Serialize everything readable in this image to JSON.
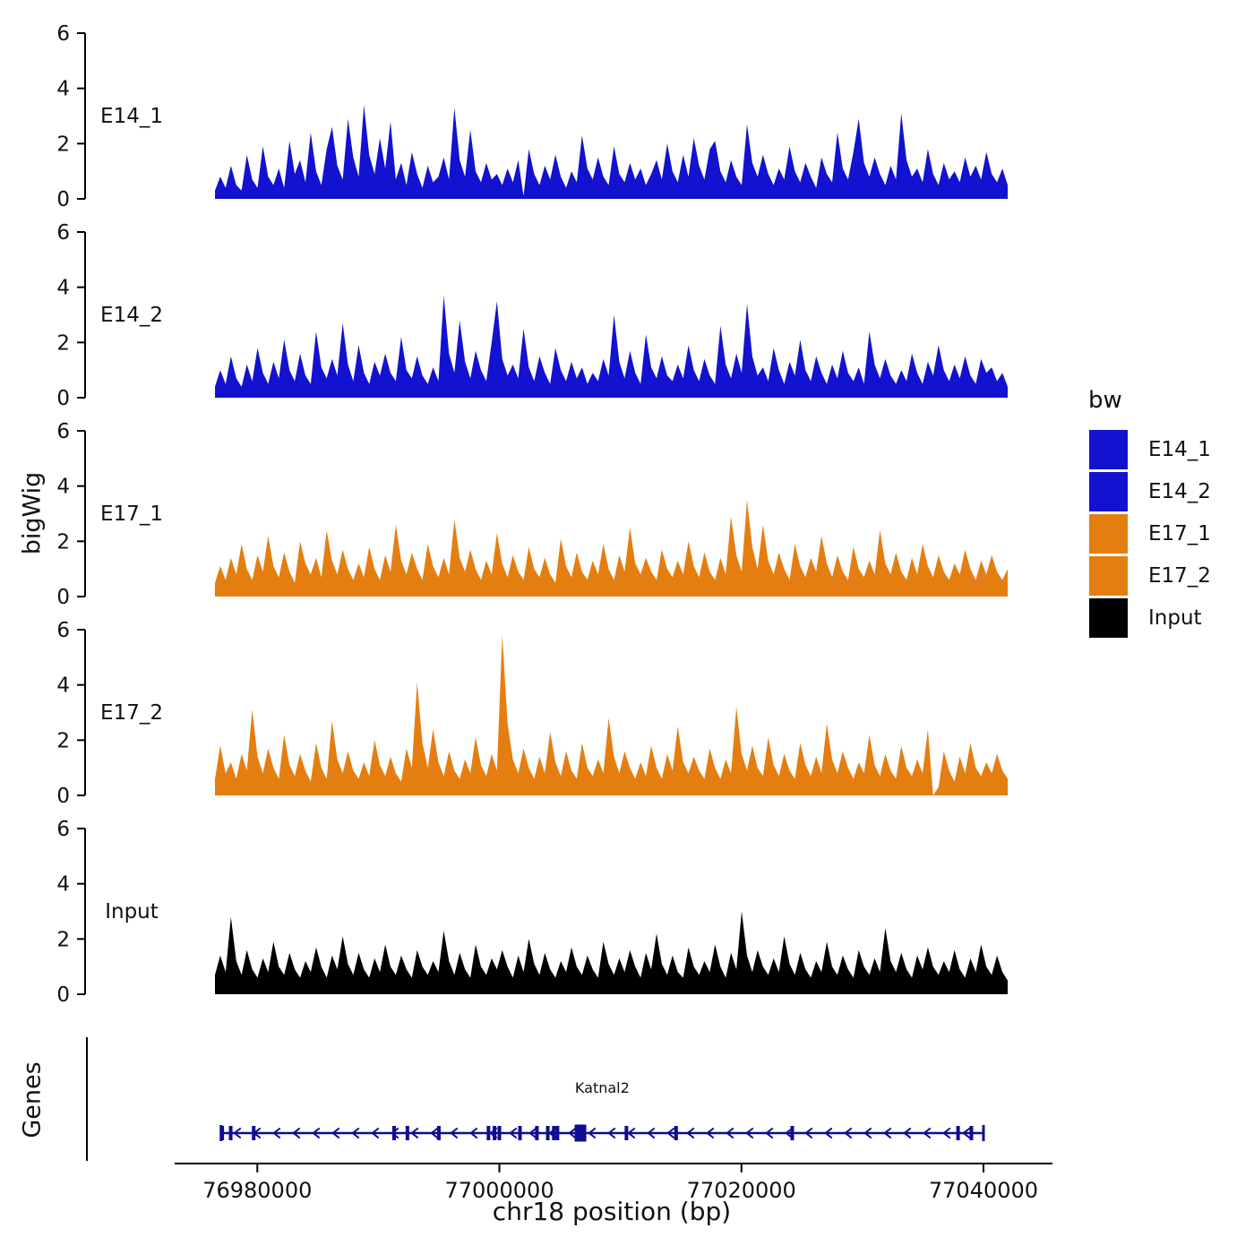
{
  "figure": {
    "y_axis_title": "bigWig",
    "genes_panel_title": "Genes",
    "x_axis_title": "chr18 position (bp)"
  },
  "legend": {
    "title": "bw",
    "items": [
      {
        "label": "E14_1",
        "color": "#1212d0"
      },
      {
        "label": "E14_2",
        "color": "#1212d0"
      },
      {
        "label": "E17_1",
        "color": "#e57e10"
      },
      {
        "label": "E17_2",
        "color": "#e57e10"
      },
      {
        "label": "Input",
        "color": "#000000"
      }
    ]
  },
  "chart_data": {
    "type": "area",
    "title": "",
    "xlabel": "chr18 position (bp)",
    "ylabel": "bigWig",
    "x_domain_bp": [
      76976500,
      77042000
    ],
    "x_ticks_bp": [
      76980000,
      77000000,
      77020000,
      77040000
    ],
    "x_tick_labels": [
      "76980000",
      "77000000",
      "77020000",
      "77040000"
    ],
    "ylim": [
      0,
      6
    ],
    "y_ticks": [
      0,
      2,
      4,
      6
    ],
    "grid": false,
    "legend_position": "right",
    "tracks": [
      {
        "name": "E14_1",
        "color": "#1212d0",
        "values": [
          0.3,
          0.8,
          0.4,
          1.2,
          0.5,
          0.3,
          1.6,
          0.7,
          0.4,
          1.9,
          0.8,
          0.5,
          1.1,
          0.4,
          2.1,
          0.9,
          1.4,
          0.6,
          2.4,
          1.0,
          0.5,
          1.8,
          2.6,
          1.2,
          0.7,
          2.9,
          1.5,
          0.8,
          3.4,
          1.6,
          0.9,
          2.2,
          1.1,
          2.8,
          0.7,
          1.3,
          0.5,
          1.7,
          0.9,
          0.4,
          1.2,
          0.6,
          0.8,
          1.5,
          0.7,
          3.3,
          1.4,
          0.8,
          2.5,
          1.0,
          0.6,
          1.3,
          0.7,
          0.9,
          0.5,
          1.1,
          0.6,
          1.4,
          0.1,
          1.8,
          0.9,
          0.5,
          1.2,
          0.7,
          1.6,
          0.8,
          0.4,
          1.0,
          0.6,
          2.3,
          1.1,
          0.7,
          1.5,
          0.8,
          0.5,
          1.9,
          0.9,
          0.6,
          1.3,
          0.7,
          1.1,
          0.5,
          0.9,
          1.4,
          0.7,
          2.0,
          1.0,
          0.6,
          1.6,
          0.8,
          2.2,
          1.2,
          0.7,
          1.8,
          2.1,
          1.0,
          0.6,
          1.4,
          0.8,
          0.5,
          2.7,
          1.3,
          0.8,
          1.6,
          0.9,
          0.5,
          1.1,
          0.7,
          1.9,
          1.0,
          0.6,
          1.3,
          0.8,
          0.4,
          1.5,
          0.9,
          0.6,
          2.4,
          1.1,
          0.7,
          1.7,
          2.9,
          1.3,
          0.8,
          1.5,
          0.9,
          0.5,
          1.2,
          0.7,
          3.1,
          1.4,
          0.8,
          1.1,
          0.6,
          1.8,
          0.9,
          0.5,
          1.3,
          0.7,
          1.0,
          0.6,
          1.5,
          0.8,
          1.2,
          0.7,
          1.7,
          0.9,
          0.6,
          1.1,
          0.5
        ]
      },
      {
        "name": "E14_2",
        "color": "#1212d0",
        "values": [
          0.4,
          1.0,
          0.5,
          1.5,
          0.7,
          0.4,
          1.2,
          0.6,
          1.8,
          0.9,
          0.5,
          1.3,
          0.7,
          2.1,
          1.0,
          0.6,
          1.6,
          0.8,
          0.5,
          2.4,
          1.1,
          0.7,
          1.4,
          0.8,
          2.7,
          1.2,
          0.6,
          1.9,
          0.9,
          0.5,
          1.3,
          0.8,
          1.6,
          0.9,
          0.6,
          2.2,
          1.0,
          0.7,
          1.5,
          0.8,
          0.5,
          1.1,
          0.6,
          3.7,
          1.6,
          0.9,
          2.8,
          1.3,
          0.7,
          1.7,
          1.0,
          0.6,
          2.0,
          3.5,
          1.4,
          0.8,
          1.2,
          0.7,
          2.5,
          1.1,
          0.6,
          1.5,
          0.9,
          0.5,
          1.8,
          1.0,
          0.6,
          1.3,
          0.7,
          1.1,
          0.5,
          0.9,
          0.6,
          1.4,
          0.8,
          3.0,
          1.3,
          0.7,
          1.7,
          0.9,
          0.5,
          2.3,
          1.1,
          0.7,
          1.5,
          0.8,
          0.6,
          1.2,
          0.7,
          1.9,
          1.0,
          0.6,
          1.4,
          0.8,
          0.5,
          2.6,
          1.2,
          0.7,
          1.6,
          0.9,
          3.4,
          1.5,
          0.8,
          1.1,
          0.6,
          1.8,
          1.0,
          0.5,
          1.3,
          0.8,
          2.1,
          1.0,
          0.6,
          1.5,
          0.9,
          0.5,
          1.2,
          0.7,
          1.7,
          0.9,
          0.6,
          1.1,
          0.5,
          2.4,
          1.2,
          0.7,
          1.4,
          0.8,
          0.5,
          1.0,
          0.6,
          1.6,
          0.9,
          0.5,
          1.3,
          0.8,
          1.9,
          1.0,
          0.6,
          1.2,
          0.7,
          1.5,
          0.8,
          0.5,
          1.4,
          0.9,
          1.1,
          0.6,
          0.9,
          0.4
        ]
      },
      {
        "name": "E17_1",
        "color": "#e57e10",
        "values": [
          0.5,
          1.1,
          0.6,
          1.4,
          0.8,
          1.9,
          1.0,
          0.6,
          1.5,
          0.9,
          2.2,
          1.1,
          0.7,
          1.6,
          0.9,
          0.5,
          2.0,
          1.2,
          0.8,
          1.4,
          0.7,
          2.4,
          1.3,
          0.8,
          1.7,
          1.0,
          0.6,
          1.2,
          0.7,
          1.8,
          1.0,
          0.6,
          1.5,
          0.9,
          2.6,
          1.3,
          0.8,
          1.6,
          1.0,
          0.6,
          1.9,
          1.1,
          0.7,
          1.4,
          0.8,
          2.8,
          1.4,
          0.9,
          1.7,
          1.0,
          0.6,
          1.3,
          0.8,
          2.3,
          1.2,
          0.7,
          1.5,
          0.9,
          0.6,
          1.8,
          1.0,
          0.7,
          1.4,
          0.8,
          0.5,
          2.1,
          1.1,
          0.7,
          1.6,
          0.9,
          0.6,
          1.3,
          0.8,
          1.9,
          1.0,
          0.6,
          1.5,
          0.9,
          2.5,
          1.2,
          0.8,
          1.4,
          0.9,
          0.6,
          1.7,
          1.0,
          0.7,
          1.3,
          0.8,
          2.0,
          1.1,
          0.7,
          1.6,
          0.9,
          0.6,
          1.4,
          0.8,
          2.9,
          1.5,
          0.9,
          3.5,
          1.8,
          1.0,
          2.6,
          1.3,
          0.8,
          1.6,
          1.0,
          0.6,
          1.9,
          1.1,
          0.7,
          1.4,
          0.9,
          2.2,
          1.2,
          0.7,
          1.5,
          0.9,
          0.6,
          1.8,
          1.0,
          0.7,
          1.3,
          0.8,
          2.4,
          1.2,
          0.8,
          1.6,
          0.9,
          0.6,
          1.4,
          0.8,
          1.9,
          1.1,
          0.7,
          1.5,
          0.9,
          0.6,
          1.2,
          0.8,
          1.7,
          1.0,
          0.6,
          1.3,
          0.8,
          1.5,
          0.9,
          0.6,
          1.0
        ]
      },
      {
        "name": "E17_2",
        "color": "#e57e10",
        "values": [
          0.6,
          1.8,
          0.8,
          1.2,
          0.6,
          1.5,
          0.9,
          3.1,
          1.4,
          0.8,
          1.7,
          1.0,
          0.6,
          2.2,
          1.1,
          0.7,
          1.5,
          0.9,
          0.5,
          1.9,
          1.0,
          0.6,
          2.7,
          1.3,
          0.8,
          1.6,
          0.9,
          0.6,
          1.2,
          0.7,
          2.0,
          1.1,
          0.7,
          1.4,
          0.8,
          0.5,
          1.7,
          1.0,
          4.1,
          1.9,
          1.0,
          2.4,
          1.2,
          0.7,
          1.6,
          0.9,
          0.6,
          1.3,
          0.8,
          2.1,
          1.1,
          0.7,
          1.5,
          0.9,
          5.8,
          2.6,
          1.3,
          0.8,
          1.7,
          1.0,
          0.6,
          1.4,
          0.8,
          2.3,
          1.2,
          0.7,
          1.6,
          0.9,
          0.6,
          1.9,
          1.0,
          0.7,
          1.3,
          0.8,
          2.8,
          1.4,
          0.8,
          1.6,
          1.0,
          0.6,
          1.2,
          0.7,
          1.8,
          1.0,
          0.6,
          1.5,
          0.9,
          2.5,
          1.2,
          0.8,
          1.4,
          0.9,
          0.6,
          1.7,
          1.0,
          0.6,
          1.3,
          0.8,
          3.2,
          1.5,
          0.9,
          1.8,
          1.0,
          0.7,
          2.1,
          1.1,
          0.7,
          1.5,
          0.9,
          0.6,
          1.9,
          1.1,
          0.7,
          1.4,
          0.8,
          2.6,
          1.3,
          0.8,
          1.6,
          1.0,
          0.6,
          1.2,
          0.8,
          2.2,
          1.1,
          0.7,
          1.5,
          0.9,
          0.6,
          1.8,
          1.0,
          0.7,
          1.3,
          0.8,
          2.4,
          0.0,
          0.3,
          1.6,
          0.9,
          0.5,
          1.4,
          0.8,
          1.9,
          1.0,
          0.7,
          1.2,
          0.8,
          1.5,
          0.9,
          0.6
        ]
      },
      {
        "name": "Input",
        "color": "#000000",
        "values": [
          0.7,
          1.4,
          0.8,
          2.8,
          1.2,
          0.7,
          1.6,
          0.9,
          0.6,
          1.3,
          0.8,
          1.9,
          1.0,
          0.7,
          1.5,
          0.9,
          0.6,
          1.2,
          0.8,
          1.7,
          1.0,
          0.6,
          1.4,
          0.9,
          2.1,
          1.1,
          0.7,
          1.5,
          0.9,
          0.6,
          1.3,
          0.8,
          1.8,
          1.0,
          0.7,
          1.4,
          0.9,
          0.6,
          1.6,
          1.0,
          0.7,
          1.2,
          0.8,
          2.3,
          1.2,
          0.7,
          1.5,
          0.9,
          0.6,
          1.8,
          1.0,
          0.7,
          1.3,
          0.9,
          1.6,
          1.0,
          0.6,
          1.4,
          0.8,
          2.0,
          1.1,
          0.7,
          1.5,
          0.9,
          0.6,
          1.2,
          0.8,
          1.7,
          1.0,
          0.7,
          1.4,
          0.9,
          0.6,
          1.9,
          1.1,
          0.7,
          1.3,
          0.8,
          1.6,
          1.0,
          0.6,
          1.5,
          0.9,
          2.2,
          1.1,
          0.7,
          1.4,
          0.8,
          0.6,
          1.7,
          1.0,
          0.7,
          1.2,
          0.8,
          1.8,
          1.0,
          0.6,
          1.5,
          0.9,
          3.0,
          1.4,
          0.8,
          1.6,
          1.0,
          0.7,
          1.3,
          0.8,
          2.1,
          1.1,
          0.7,
          1.5,
          0.9,
          0.6,
          1.2,
          0.8,
          1.9,
          1.0,
          0.7,
          1.4,
          0.9,
          0.6,
          1.6,
          1.0,
          0.7,
          1.3,
          0.8,
          2.4,
          1.2,
          0.8,
          1.5,
          0.9,
          0.6,
          1.4,
          0.9,
          1.7,
          1.0,
          0.7,
          1.2,
          0.8,
          1.6,
          0.9,
          0.6,
          1.3,
          0.8,
          1.8,
          1.0,
          0.7,
          1.4,
          0.8,
          0.5
        ]
      }
    ],
    "genes": [
      {
        "name": "Katnal2",
        "strand": "-",
        "color": "#0d0d8f",
        "start_bp": 76977000,
        "end_bp": 77040000,
        "large_exon_bp": 77006700,
        "exons_bp": [
          76977100,
          76977800,
          76979700,
          76991300,
          76992400,
          76995000,
          76999100,
          76999600,
          77000000,
          77001700,
          77003100,
          77004000,
          77004500,
          77004800,
          77010500,
          77014600,
          77024200,
          77037900,
          77039000
        ]
      }
    ]
  }
}
